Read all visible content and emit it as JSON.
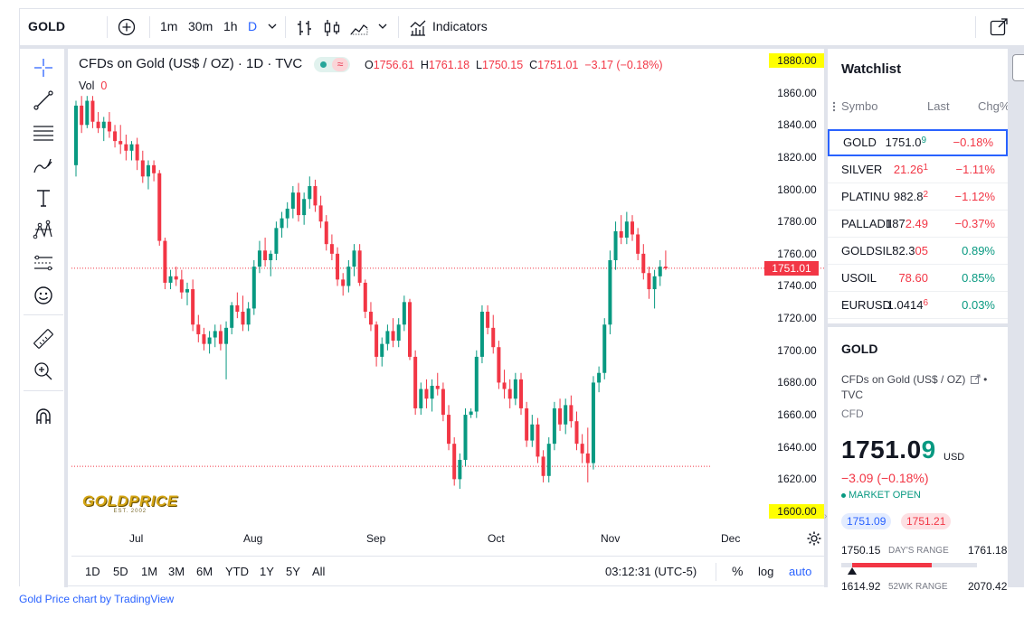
{
  "toolbar": {
    "symbol": "GOLD",
    "intervals": [
      "1m",
      "30m",
      "1h",
      "D"
    ],
    "active_interval": "D",
    "indicators_label": "Indicators"
  },
  "legend": {
    "title": "CFDs on Gold (US$ / OZ) · 1D · TVC",
    "o_label": "O",
    "o_value": "1756.61",
    "h_label": "H",
    "h_value": "1761.18",
    "l_label": "L",
    "l_value": "1750.15",
    "c_label": "C",
    "c_value": "1751.01",
    "change": "−3.17 (−0.18%)",
    "vol_label": "Vol",
    "vol_value": "0",
    "approx_badge": "≈"
  },
  "logo": {
    "text": "GOLDPRICE",
    "est": "EST. 2002"
  },
  "price_scale": {
    "ticks": [
      "1880.00",
      "1860.00",
      "1840.00",
      "1820.00",
      "1800.00",
      "1780.00",
      "1760.00",
      "1740.00",
      "1720.00",
      "1700.00",
      "1680.00",
      "1660.00",
      "1640.00",
      "1620.00",
      "1600.00"
    ],
    "highlighted": [
      "1880.00",
      "1600.00"
    ],
    "last_price_tag": "1751.01"
  },
  "time_axis": {
    "labels": [
      "Jul",
      "Aug",
      "Sep",
      "Oct",
      "Nov",
      "Dec"
    ]
  },
  "range_bar": {
    "ranges": [
      "1D",
      "5D",
      "1M",
      "3M",
      "6M",
      "YTD",
      "1Y",
      "5Y",
      "All"
    ],
    "clock": "03:12:31 (UTC-5)",
    "percent": "%",
    "log": "log",
    "auto": "auto"
  },
  "watchlist": {
    "title": "Watchlist",
    "columns": {
      "symbol": "Symbo",
      "last": "Last",
      "chg": "Chg%"
    },
    "rows": [
      {
        "symbol": "GOLD",
        "last_main": "1751.0",
        "last_tail": "9",
        "chg": "−0.18%",
        "last_color": "dark",
        "tail_color": "pos",
        "chg_color": "neg"
      },
      {
        "symbol": "SILVER",
        "last_main": "21.26",
        "last_tail": "1",
        "chg": "−1.11%",
        "last_color": "neg",
        "tail_color": "neg",
        "chg_color": "neg"
      },
      {
        "symbol": "PLATINU",
        "last_main": "982.8",
        "last_tail": "2",
        "chg": "−1.12%",
        "last_color": "dark",
        "tail_color": "neg",
        "chg_color": "neg"
      },
      {
        "symbol": "PALLADII",
        "last_main": "187",
        "last_tail": "2.49",
        "chg": "−0.37%",
        "last_color": "dark",
        "tail_color": "neg",
        "chg_color": "neg"
      },
      {
        "symbol": "GOLDSIL'",
        "last_main": "82.3",
        "last_tail": "05",
        "chg": "0.89%",
        "last_color": "dark",
        "tail_color": "neg",
        "chg_color": "pos"
      },
      {
        "symbol": "USOIL",
        "last_main": "78.60",
        "last_tail": "",
        "chg": "0.85%",
        "last_color": "neg",
        "tail_color": "neg",
        "chg_color": "pos"
      },
      {
        "symbol": "EURUSD",
        "last_main": "1.0414",
        "last_tail": "6",
        "chg": "0.03%",
        "last_color": "dark",
        "tail_color": "neg",
        "chg_color": "pos"
      }
    ]
  },
  "details": {
    "symbol": "GOLD",
    "description": "CFDs on Gold (US$ / OZ)",
    "exchange": "TVC",
    "type": "CFD",
    "price_main": "1751.0",
    "price_tail": "9",
    "currency": "USD",
    "change": "−3.09 (−0.18%)",
    "market_status": "MARKET OPEN",
    "bid": "1751.09",
    "ask": "1751.21",
    "day_low": "1750.15",
    "day_label": "DAY'S RANGE",
    "day_high": "1761.18",
    "wk_low": "1614.92",
    "wk_label": "52WK RANGE",
    "wk_high": "2070.42",
    "day_range_position": 0.08
  },
  "credit": "Gold Price chart by TradingView",
  "colors": {
    "up": "#089981",
    "down": "#f23645",
    "accent": "#2962ff",
    "highlight": "#ffff00"
  },
  "chart_data": {
    "type": "candlestick",
    "title": "CFDs on Gold (US$ / OZ) · 1D · TVC",
    "ylim": [
      1600,
      1880
    ],
    "x_labels": [
      "Jul",
      "Aug",
      "Sep",
      "Oct",
      "Nov",
      "Dec"
    ],
    "last_price": 1751.01,
    "reference_line": 1628,
    "candles_ohlc": [
      [
        1815,
        1855,
        1808,
        1852
      ],
      [
        1852,
        1858,
        1835,
        1840
      ],
      [
        1840,
        1858,
        1838,
        1855
      ],
      [
        1855,
        1858,
        1838,
        1842
      ],
      [
        1842,
        1848,
        1835,
        1838
      ],
      [
        1838,
        1845,
        1830,
        1842
      ],
      [
        1842,
        1848,
        1832,
        1836
      ],
      [
        1836,
        1840,
        1826,
        1830
      ],
      [
        1830,
        1840,
        1822,
        1828
      ],
      [
        1828,
        1834,
        1818,
        1824
      ],
      [
        1824,
        1830,
        1818,
        1828
      ],
      [
        1828,
        1832,
        1812,
        1818
      ],
      [
        1818,
        1824,
        1804,
        1808
      ],
      [
        1808,
        1818,
        1800,
        1815
      ],
      [
        1815,
        1818,
        1805,
        1810
      ],
      [
        1810,
        1812,
        1765,
        1768
      ],
      [
        1768,
        1770,
        1738,
        1742
      ],
      [
        1742,
        1750,
        1738,
        1746
      ],
      [
        1746,
        1752,
        1740,
        1744
      ],
      [
        1744,
        1750,
        1732,
        1736
      ],
      [
        1736,
        1742,
        1728,
        1738
      ],
      [
        1738,
        1744,
        1712,
        1716
      ],
      [
        1716,
        1722,
        1705,
        1710
      ],
      [
        1710,
        1714,
        1700,
        1704
      ],
      [
        1704,
        1712,
        1698,
        1708
      ],
      [
        1708,
        1716,
        1702,
        1712
      ],
      [
        1712,
        1716,
        1700,
        1704
      ],
      [
        1704,
        1718,
        1682,
        1714
      ],
      [
        1714,
        1730,
        1710,
        1728
      ],
      [
        1728,
        1736,
        1720,
        1724
      ],
      [
        1724,
        1734,
        1712,
        1716
      ],
      [
        1716,
        1730,
        1712,
        1726
      ],
      [
        1726,
        1756,
        1722,
        1752
      ],
      [
        1752,
        1768,
        1748,
        1762
      ],
      [
        1762,
        1770,
        1752,
        1756
      ],
      [
        1756,
        1762,
        1746,
        1760
      ],
      [
        1760,
        1780,
        1756,
        1776
      ],
      [
        1776,
        1786,
        1770,
        1782
      ],
      [
        1782,
        1792,
        1776,
        1788
      ],
      [
        1788,
        1802,
        1782,
        1798
      ],
      [
        1798,
        1804,
        1780,
        1784
      ],
      [
        1784,
        1798,
        1778,
        1794
      ],
      [
        1794,
        1808,
        1788,
        1802
      ],
      [
        1802,
        1806,
        1786,
        1790
      ],
      [
        1790,
        1796,
        1776,
        1780
      ],
      [
        1780,
        1784,
        1762,
        1766
      ],
      [
        1766,
        1772,
        1756,
        1760
      ],
      [
        1760,
        1764,
        1740,
        1744
      ],
      [
        1744,
        1748,
        1734,
        1740
      ],
      [
        1740,
        1756,
        1736,
        1752
      ],
      [
        1752,
        1766,
        1746,
        1762
      ],
      [
        1762,
        1766,
        1740,
        1742
      ],
      [
        1742,
        1744,
        1720,
        1724
      ],
      [
        1724,
        1730,
        1712,
        1716
      ],
      [
        1716,
        1718,
        1690,
        1696
      ],
      [
        1696,
        1708,
        1690,
        1704
      ],
      [
        1704,
        1716,
        1700,
        1712
      ],
      [
        1712,
        1720,
        1702,
        1706
      ],
      [
        1706,
        1720,
        1702,
        1716
      ],
      [
        1716,
        1734,
        1712,
        1730
      ],
      [
        1730,
        1732,
        1694,
        1696
      ],
      [
        1696,
        1700,
        1660,
        1664
      ],
      [
        1664,
        1680,
        1660,
        1676
      ],
      [
        1676,
        1682,
        1664,
        1670
      ],
      [
        1670,
        1682,
        1662,
        1678
      ],
      [
        1678,
        1686,
        1672,
        1676
      ],
      [
        1676,
        1680,
        1656,
        1660
      ],
      [
        1660,
        1666,
        1638,
        1642
      ],
      [
        1642,
        1646,
        1616,
        1620
      ],
      [
        1620,
        1636,
        1614,
        1632
      ],
      [
        1632,
        1664,
        1628,
        1660
      ],
      [
        1660,
        1664,
        1658,
        1662
      ],
      [
        1662,
        1700,
        1658,
        1696
      ],
      [
        1696,
        1728,
        1692,
        1724
      ],
      [
        1724,
        1728,
        1710,
        1714
      ],
      [
        1714,
        1722,
        1698,
        1702
      ],
      [
        1702,
        1706,
        1676,
        1680
      ],
      [
        1680,
        1688,
        1670,
        1676
      ],
      [
        1676,
        1682,
        1664,
        1670
      ],
      [
        1670,
        1686,
        1666,
        1682
      ],
      [
        1682,
        1686,
        1660,
        1664
      ],
      [
        1664,
        1668,
        1640,
        1644
      ],
      [
        1644,
        1660,
        1640,
        1654
      ],
      [
        1654,
        1658,
        1630,
        1634
      ],
      [
        1634,
        1638,
        1618,
        1622
      ],
      [
        1622,
        1646,
        1618,
        1642
      ],
      [
        1642,
        1668,
        1638,
        1664
      ],
      [
        1664,
        1670,
        1650,
        1654
      ],
      [
        1654,
        1670,
        1648,
        1666
      ],
      [
        1666,
        1672,
        1652,
        1656
      ],
      [
        1656,
        1662,
        1638,
        1642
      ],
      [
        1642,
        1648,
        1630,
        1636
      ],
      [
        1636,
        1652,
        1618,
        1630
      ],
      [
        1630,
        1684,
        1626,
        1680
      ],
      [
        1680,
        1690,
        1674,
        1686
      ],
      [
        1686,
        1720,
        1682,
        1716
      ],
      [
        1716,
        1762,
        1710,
        1756
      ],
      [
        1756,
        1780,
        1750,
        1774
      ],
      [
        1774,
        1784,
        1766,
        1770
      ],
      [
        1770,
        1786,
        1766,
        1780
      ],
      [
        1780,
        1784,
        1768,
        1772
      ],
      [
        1772,
        1776,
        1756,
        1760
      ],
      [
        1760,
        1766,
        1744,
        1748
      ],
      [
        1748,
        1752,
        1732,
        1738
      ],
      [
        1738,
        1750,
        1726,
        1746
      ],
      [
        1746,
        1756,
        1740,
        1752
      ],
      [
        1752,
        1762,
        1750,
        1751
      ]
    ]
  }
}
